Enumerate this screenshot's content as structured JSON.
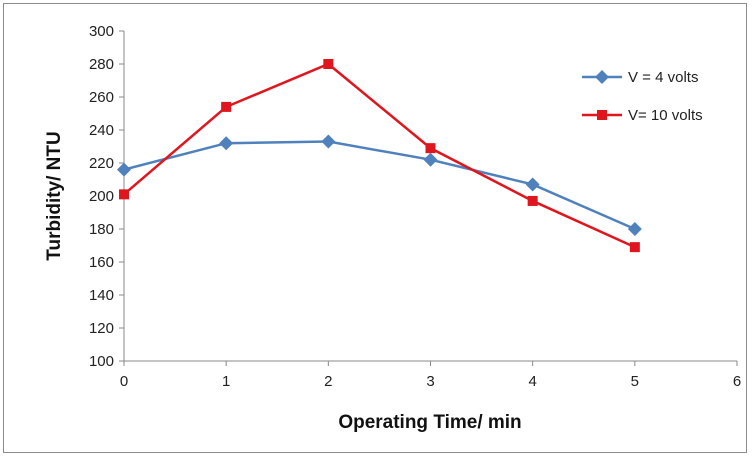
{
  "chart_data": {
    "type": "line",
    "xlabel": "Operating Time/ min",
    "ylabel": "Turbidity/ NTU",
    "xlim": [
      0,
      6
    ],
    "ylim": [
      100,
      300
    ],
    "xticks": [
      0,
      1,
      2,
      3,
      4,
      5,
      6
    ],
    "yticks": [
      100,
      120,
      140,
      160,
      180,
      200,
      220,
      240,
      260,
      280,
      300
    ],
    "grid": false,
    "legend_position": "top-right",
    "x": [
      0,
      1,
      2,
      3,
      4,
      5
    ],
    "series": [
      {
        "name": "V = 4 volts",
        "values": [
          216,
          232,
          233,
          222,
          207,
          180
        ],
        "color": "#4f81bd",
        "marker": "diamond"
      },
      {
        "name": "V= 10 volts",
        "values": [
          201,
          254,
          280,
          229,
          197,
          169
        ],
        "color": "#e0161f",
        "marker": "square"
      }
    ]
  }
}
